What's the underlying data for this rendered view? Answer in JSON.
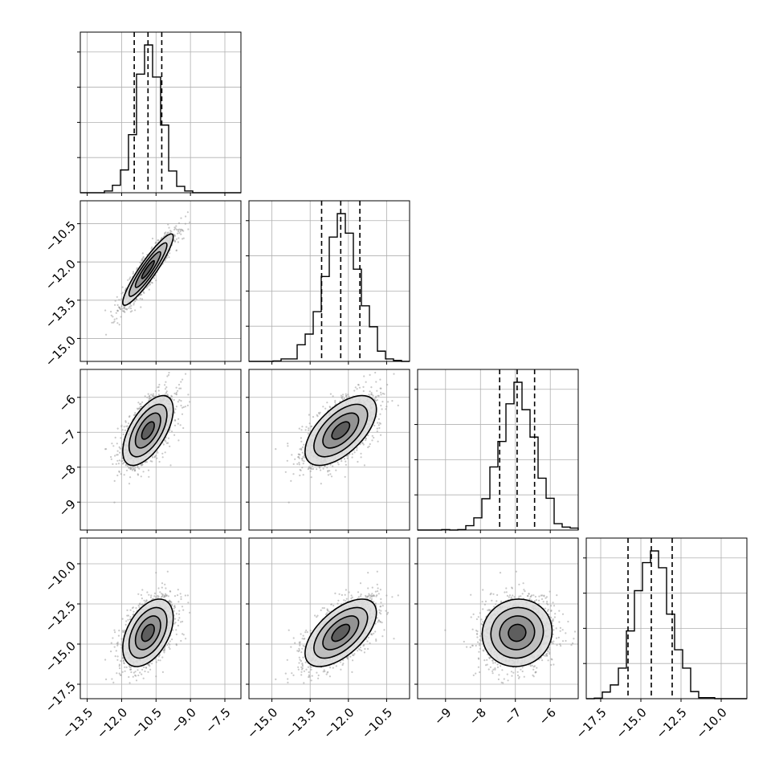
{
  "chart_data": {
    "type": "corner",
    "title": "",
    "ndim": 4,
    "grid": true,
    "colors": {
      "ink": "#000000",
      "grid": "#b0b0b0",
      "points": "#9a9a9a"
    },
    "params": [
      {
        "index": 0,
        "mean": -10.85,
        "std": 0.55,
        "range": [
          -13.8,
          -6.8
        ],
        "quantiles": [
          -11.45,
          -10.85,
          -10.25
        ],
        "xticks": [
          -13.5,
          -12.0,
          -10.5,
          -9.0,
          -7.5
        ],
        "xtick_labels": [
          "−13.5",
          "−12.0",
          "−10.5",
          "−9.0",
          "−7.5"
        ]
      },
      {
        "index": 1,
        "mean": -12.3,
        "std": 0.7,
        "range": [
          -15.9,
          -9.6
        ],
        "quantiles": [
          -13.05,
          -12.3,
          -11.55
        ],
        "xticks": [
          -15.0,
          -13.5,
          -12.0,
          -10.5
        ],
        "xtick_labels": [
          "−15.0",
          "−13.5",
          "−12.0",
          "−10.5"
        ],
        "yticks": [
          -15.0,
          -13.5,
          -12.0,
          -10.5
        ],
        "ytick_labels": [
          "−15.0",
          "−13.5",
          "−12.0",
          "−10.5"
        ]
      },
      {
        "index": 2,
        "mean": -6.95,
        "std": 0.5,
        "range": [
          -9.8,
          -5.2
        ],
        "quantiles": [
          -7.45,
          -6.95,
          -6.45
        ],
        "xticks": [
          -9,
          -8,
          -7,
          -6
        ],
        "xtick_labels": [
          "−9",
          "−8",
          "−7",
          "−6"
        ],
        "yticks": [
          -9,
          -8,
          -7,
          -6
        ],
        "ytick_labels": [
          "−9",
          "−8",
          "−7",
          "−6"
        ]
      },
      {
        "index": 3,
        "mean": -14.3,
        "std": 1.05,
        "range": [
          -18.4,
          -8.4
        ],
        "quantiles": [
          -15.8,
          -14.35,
          -13.05
        ],
        "xticks": [
          -17.5,
          -15.0,
          -12.5,
          -10.0
        ],
        "xtick_labels": [
          "−17.5",
          "−15.0",
          "−12.5",
          "−10.0"
        ],
        "yticks": [
          -17.5,
          -15.0,
          -12.5,
          -10.0
        ],
        "ytick_labels": [
          "−17.5",
          "−15.0",
          "−12.5",
          "−10.0"
        ]
      }
    ],
    "correlations": [
      [
        1.0,
        0.92,
        0.6,
        0.45
      ],
      [
        0.92,
        1.0,
        0.6,
        0.6
      ],
      [
        0.6,
        0.6,
        1.0,
        0.05
      ],
      [
        0.45,
        0.6,
        0.05,
        1.0
      ]
    ],
    "histogram_bins": 20,
    "contour_levels": [
      "0.5σ",
      "1σ",
      "1.5σ",
      "2σ"
    ]
  }
}
